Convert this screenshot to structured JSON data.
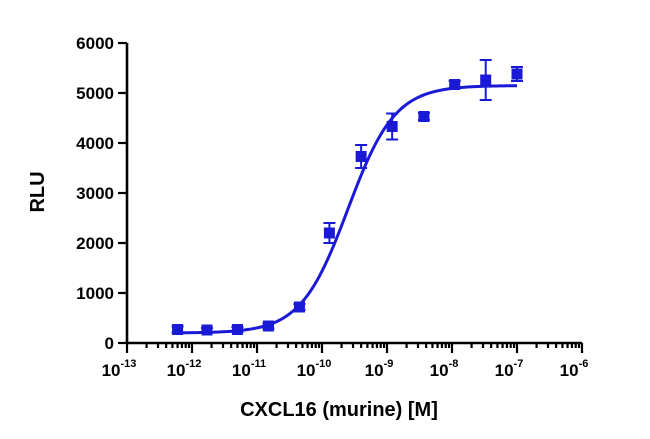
{
  "chart_data": {
    "type": "scatter",
    "title": "",
    "xlabel": "CXCL16 (murine) [M]",
    "ylabel": "RLU",
    "x_scale": "log10",
    "xlim": [
      1e-13,
      1e-06
    ],
    "ylim": [
      0,
      6000
    ],
    "x_ticks": [
      {
        "base": "10",
        "exp": "-13"
      },
      {
        "base": "10",
        "exp": "-12"
      },
      {
        "base": "10",
        "exp": "-11"
      },
      {
        "base": "10",
        "exp": "-10"
      },
      {
        "base": "10",
        "exp": "-9"
      },
      {
        "base": "10",
        "exp": "-8"
      },
      {
        "base": "10",
        "exp": "-7"
      },
      {
        "base": "10",
        "exp": "-6"
      }
    ],
    "y_ticks": [
      "0",
      "1000",
      "2000",
      "3000",
      "4000",
      "5000",
      "6000"
    ],
    "grid": false,
    "legend": "none",
    "color": "#1a1ad6",
    "series": [
      {
        "points": [
          {
            "x": 6e-13,
            "y": 270,
            "err": 60
          },
          {
            "x": 1.7e-12,
            "y": 260,
            "err": 40
          },
          {
            "x": 5e-12,
            "y": 270,
            "err": 50
          },
          {
            "x": 1.5e-11,
            "y": 340,
            "err": 50
          },
          {
            "x": 4.5e-11,
            "y": 720,
            "err": 60
          },
          {
            "x": 1.3e-10,
            "y": 2200,
            "err": 200
          },
          {
            "x": 4e-10,
            "y": 3730,
            "err": 230
          },
          {
            "x": 1.2e-09,
            "y": 4330,
            "err": 260
          },
          {
            "x": 3.7e-09,
            "y": 4530,
            "err": 70
          },
          {
            "x": 1.1e-08,
            "y": 5170,
            "err": 70
          },
          {
            "x": 3.3e-08,
            "y": 5260,
            "err": 400
          },
          {
            "x": 1e-07,
            "y": 5380,
            "err": 140
          }
        ],
        "fit": {
          "model": "four-parameter logistic",
          "bottom": 200,
          "top": 5150,
          "ec50": 2.5e-10,
          "hill": 1.2
        }
      }
    ]
  }
}
